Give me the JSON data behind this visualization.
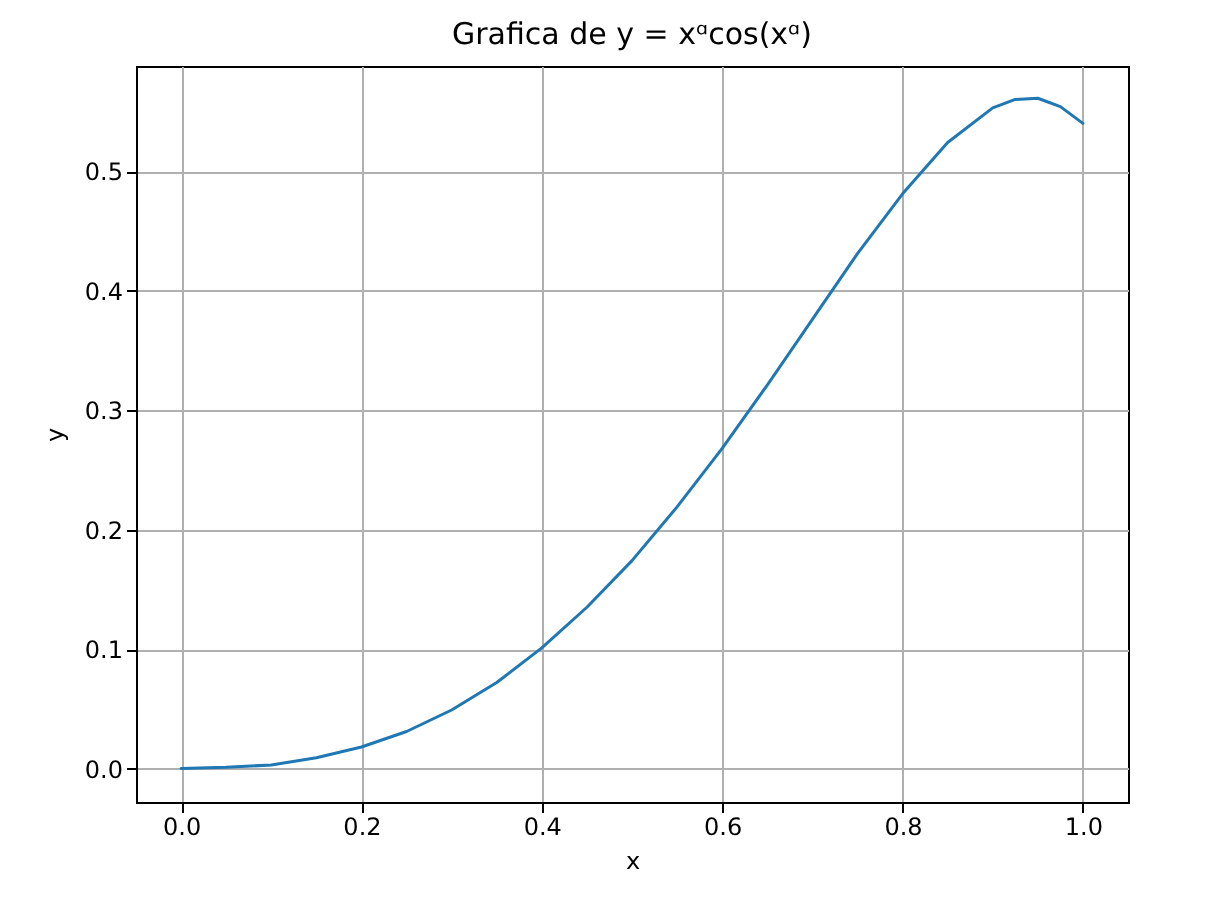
{
  "chart_data": {
    "type": "line",
    "title": "Grafica de y = xᵅcos(xᵅ)",
    "xlabel": "x",
    "ylabel": "y",
    "x": [
      0,
      0.05,
      0.1,
      0.15,
      0.2,
      0.25,
      0.3,
      0.35,
      0.4,
      0.45,
      0.5,
      0.55,
      0.6,
      0.65,
      0.7,
      0.75,
      0.8,
      0.85,
      0.9,
      0.925,
      0.95,
      0.975,
      1.0
    ],
    "series": [
      {
        "color": "#1f77b4",
        "values": [
          0,
          0.001,
          0.003,
          0.009,
          0.018,
          0.031,
          0.049,
          0.072,
          0.101,
          0.135,
          0.174,
          0.219,
          0.268,
          0.321,
          0.376,
          0.431,
          0.481,
          0.524,
          0.553,
          0.56,
          0.561,
          0.554,
          0.54
        ]
      }
    ],
    "xlim": [
      -0.05,
      1.05
    ],
    "ylim": [
      -0.028,
      0.588
    ],
    "xticks": [
      {
        "value": 0,
        "label": "0.0"
      },
      {
        "value": 0.2,
        "label": "0.2"
      },
      {
        "value": 0.4,
        "label": "0.4"
      },
      {
        "value": 0.6,
        "label": "0.6"
      },
      {
        "value": 0.8,
        "label": "0.8"
      },
      {
        "value": 1,
        "label": "1.0"
      }
    ],
    "yticks": [
      {
        "value": 0,
        "label": "0.0"
      },
      {
        "value": 0.1,
        "label": "0.1"
      },
      {
        "value": 0.2,
        "label": "0.2"
      },
      {
        "value": 0.3,
        "label": "0.3"
      },
      {
        "value": 0.4,
        "label": "0.4"
      },
      {
        "value": 0.5,
        "label": "0.5"
      }
    ],
    "grid": true,
    "marker": "none",
    "line_style": "solid"
  }
}
